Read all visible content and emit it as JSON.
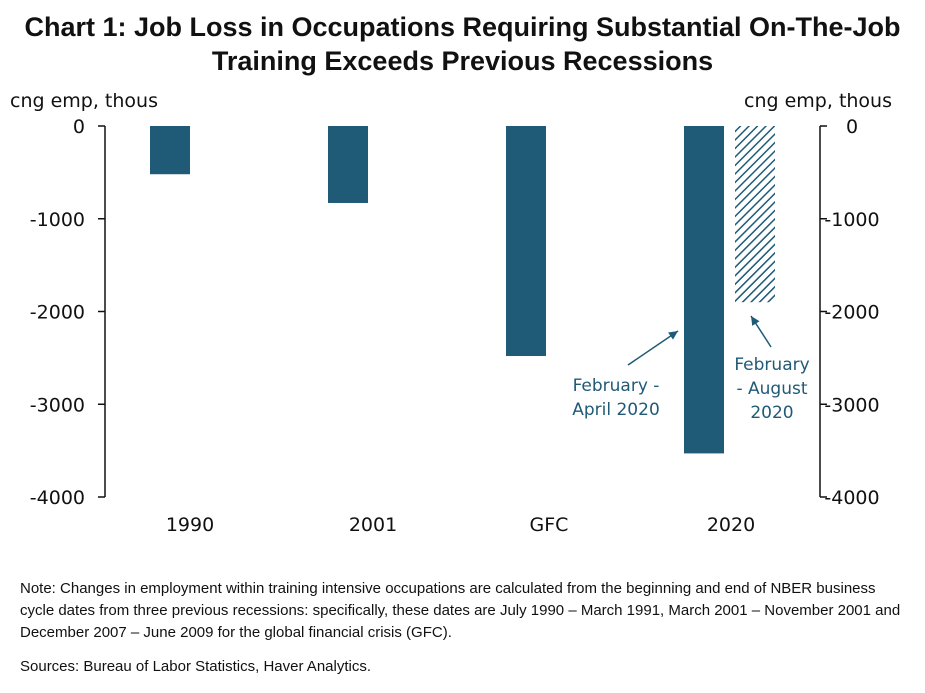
{
  "title": {
    "line1": "Chart 1: Job Loss in Occupations Requiring Substantial On-The-Job",
    "line2": "Training Exceeds Previous Recessions"
  },
  "note": "Note: Changes in employment within training intensive occupations are calculated from the beginning and end of NBER business cycle dates from three previous recessions: specifically, these dates are July 1990 – March 1991, March 2001 – November 2001 and December 2007 – June 2009 for the global financial crisis (GFC).",
  "source": "Sources: Bureau of Labor Statistics, Haver Analytics.",
  "colors": {
    "bar": "#1f5a77",
    "axis": "#111111"
  },
  "chart_data": {
    "type": "bar",
    "ylabel_left": "cng emp, thous",
    "ylabel_right": "cng emp, thous",
    "ylim": [
      -4000,
      0
    ],
    "yticks": [
      0,
      -1000,
      -2000,
      -3000,
      -4000
    ],
    "categories": [
      "1990",
      "2001",
      "GFC",
      "2020"
    ],
    "bars": [
      {
        "category": "1990",
        "value": -520,
        "style": "solid"
      },
      {
        "category": "2001",
        "value": -830,
        "style": "solid"
      },
      {
        "category": "GFC",
        "value": -2480,
        "style": "solid"
      },
      {
        "category": "2020",
        "value": -3530,
        "style": "solid"
      },
      {
        "category": "2020",
        "value": -1900,
        "style": "hatched"
      }
    ],
    "annotations": [
      {
        "lines": [
          "February -",
          "April 2020"
        ]
      },
      {
        "lines": [
          "February",
          "- August",
          "2020"
        ]
      }
    ],
    "grid": false
  }
}
